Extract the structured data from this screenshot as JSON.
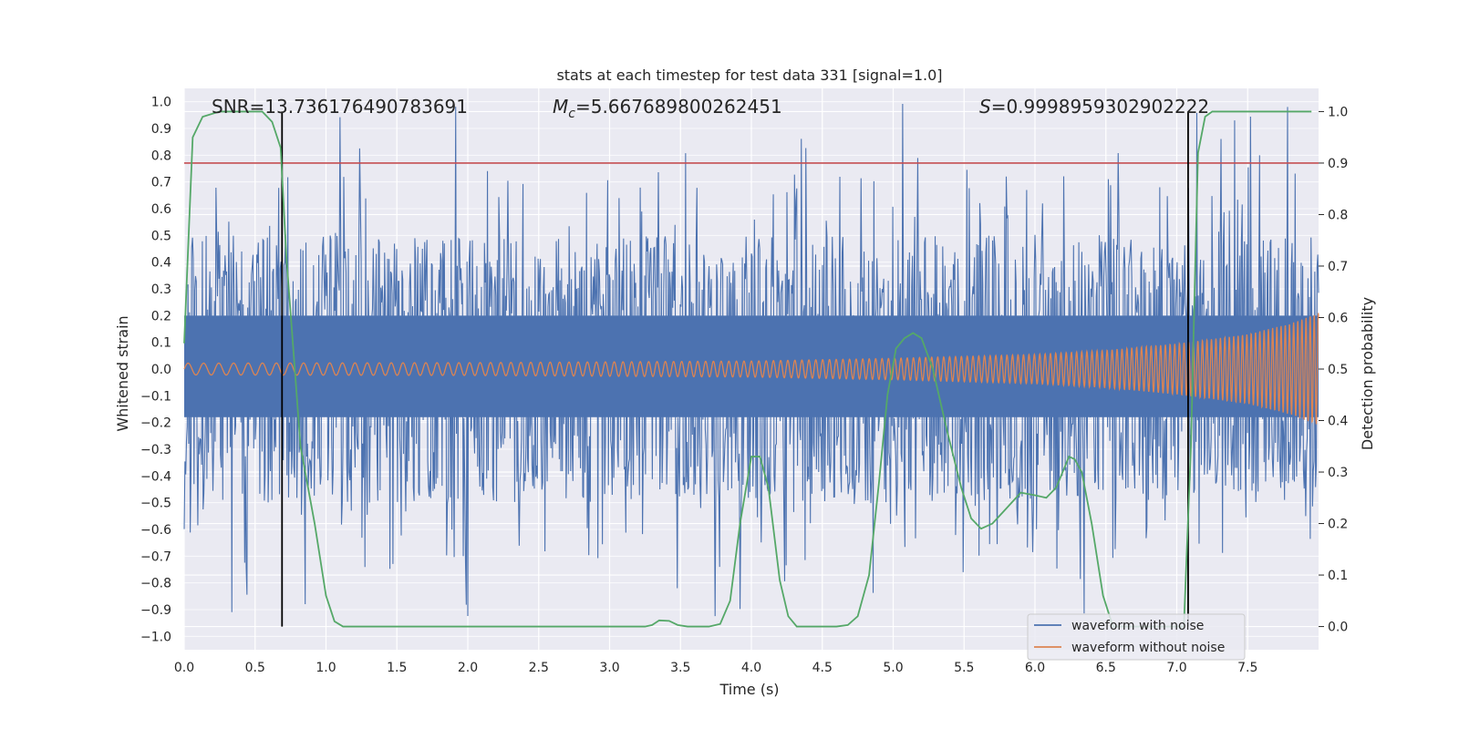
{
  "chart_data": {
    "type": "line",
    "title": "stats at each timestep for test data 331 [signal=1.0]",
    "xlabel": "Time (s)",
    "ylabel": "Whitened strain",
    "y2label": "Detection probability",
    "xlim": [
      0.0,
      8.0
    ],
    "ylim": [
      -1.05,
      1.05
    ],
    "y2lim": [
      -0.045,
      1.045
    ],
    "xticks": [
      0.0,
      0.5,
      1.0,
      1.5,
      2.0,
      2.5,
      3.0,
      3.5,
      4.0,
      4.5,
      5.0,
      5.5,
      6.0,
      6.5,
      7.0,
      7.5
    ],
    "xtick_labels": [
      "0.0",
      "0.5",
      "1.0",
      "1.5",
      "2.0",
      "2.5",
      "3.0",
      "3.5",
      "4.0",
      "4.5",
      "5.0",
      "5.5",
      "6.0",
      "6.5",
      "7.0",
      "7.5"
    ],
    "yticks": [
      1.0,
      0.9,
      0.8,
      0.7,
      0.6,
      0.5,
      0.4,
      0.3,
      0.2,
      0.1,
      0.0,
      -0.1,
      -0.2,
      -0.3,
      -0.4,
      -0.5,
      -0.6,
      -0.7,
      -0.8,
      -0.9,
      -1.0
    ],
    "ytick_labels": [
      "1.0",
      "0.9",
      "0.8",
      "0.7",
      "0.6",
      "0.5",
      "0.4",
      "0.3",
      "0.2",
      "0.1",
      "0.0",
      "−0.1",
      "−0.2",
      "−0.3",
      "−0.4",
      "−0.5",
      "−0.6",
      "−0.7",
      "−0.8",
      "−0.9",
      "−1.0"
    ],
    "y2ticks": [
      1.0,
      0.9,
      0.8,
      0.7,
      0.6,
      0.5,
      0.4,
      0.3,
      0.2,
      0.1,
      0.0
    ],
    "y2tick_labels": [
      "1.0",
      "0.9",
      "0.8",
      "0.7",
      "0.6",
      "0.5",
      "0.4",
      "0.3",
      "0.2",
      "0.1",
      "0.0"
    ],
    "annotations": {
      "snr": "SNR=13.736176490783691",
      "mc_symbol": "M",
      "mc_sub": "c",
      "mc_value": "=5.667689800262451",
      "s_symbol": "S",
      "s_value": "=0.9998959302902222"
    },
    "legend": {
      "position": "lower right",
      "entries": [
        "waveform with noise",
        "waveform without noise"
      ]
    },
    "colors": {
      "noise": "#4c72b0",
      "clean": "#dd8452",
      "probability": "#55a868",
      "threshold": "#c44e52",
      "markers": "#000000",
      "background": "#eaeaf2",
      "grid": "#ffffff"
    },
    "threshold": 0.9,
    "vertical_markers": [
      0.69,
      7.08
    ],
    "noise_envelope": {
      "typical": 0.38,
      "peak": 1.0,
      "min": -0.94
    },
    "clean_envelope": [
      [
        0.0,
        0.022
      ],
      [
        2.0,
        0.024
      ],
      [
        4.0,
        0.03
      ],
      [
        5.0,
        0.04
      ],
      [
        6.0,
        0.055
      ],
      [
        6.5,
        0.07
      ],
      [
        7.0,
        0.095
      ],
      [
        7.5,
        0.13
      ],
      [
        7.8,
        0.17
      ],
      [
        8.0,
        0.21
      ]
    ],
    "detection_probability": [
      [
        0.0,
        0.55
      ],
      [
        0.03,
        0.75
      ],
      [
        0.06,
        0.95
      ],
      [
        0.13,
        0.99
      ],
      [
        0.25,
        1.0
      ],
      [
        0.55,
        1.0
      ],
      [
        0.62,
        0.98
      ],
      [
        0.68,
        0.93
      ],
      [
        0.72,
        0.72
      ],
      [
        0.78,
        0.5
      ],
      [
        0.82,
        0.35
      ],
      [
        0.92,
        0.2
      ],
      [
        1.0,
        0.06
      ],
      [
        1.06,
        0.01
      ],
      [
        1.12,
        0.0
      ],
      [
        2.0,
        0.0
      ],
      [
        3.0,
        0.0
      ],
      [
        3.25,
        0.0
      ],
      [
        3.3,
        0.003
      ],
      [
        3.35,
        0.012
      ],
      [
        3.42,
        0.011
      ],
      [
        3.48,
        0.003
      ],
      [
        3.55,
        0.0
      ],
      [
        3.7,
        0.0
      ],
      [
        3.78,
        0.005
      ],
      [
        3.85,
        0.05
      ],
      [
        3.92,
        0.2
      ],
      [
        4.0,
        0.33
      ],
      [
        4.06,
        0.33
      ],
      [
        4.12,
        0.27
      ],
      [
        4.2,
        0.09
      ],
      [
        4.26,
        0.02
      ],
      [
        4.32,
        0.0
      ],
      [
        4.6,
        0.0
      ],
      [
        4.68,
        0.003
      ],
      [
        4.75,
        0.02
      ],
      [
        4.83,
        0.1
      ],
      [
        4.9,
        0.28
      ],
      [
        4.96,
        0.45
      ],
      [
        5.02,
        0.54
      ],
      [
        5.08,
        0.56
      ],
      [
        5.14,
        0.57
      ],
      [
        5.2,
        0.56
      ],
      [
        5.28,
        0.5
      ],
      [
        5.38,
        0.38
      ],
      [
        5.48,
        0.27
      ],
      [
        5.55,
        0.21
      ],
      [
        5.62,
        0.19
      ],
      [
        5.7,
        0.2
      ],
      [
        5.8,
        0.23
      ],
      [
        5.9,
        0.26
      ],
      [
        6.0,
        0.255
      ],
      [
        6.08,
        0.25
      ],
      [
        6.15,
        0.27
      ],
      [
        6.24,
        0.33
      ],
      [
        6.28,
        0.325
      ],
      [
        6.33,
        0.3
      ],
      [
        6.4,
        0.2
      ],
      [
        6.48,
        0.06
      ],
      [
        6.55,
        0.0
      ],
      [
        7.05,
        0.0
      ],
      [
        7.1,
        0.35
      ],
      [
        7.13,
        0.7
      ],
      [
        7.15,
        0.92
      ],
      [
        7.2,
        0.99
      ],
      [
        7.25,
        1.0
      ],
      [
        7.95,
        1.0
      ]
    ]
  }
}
